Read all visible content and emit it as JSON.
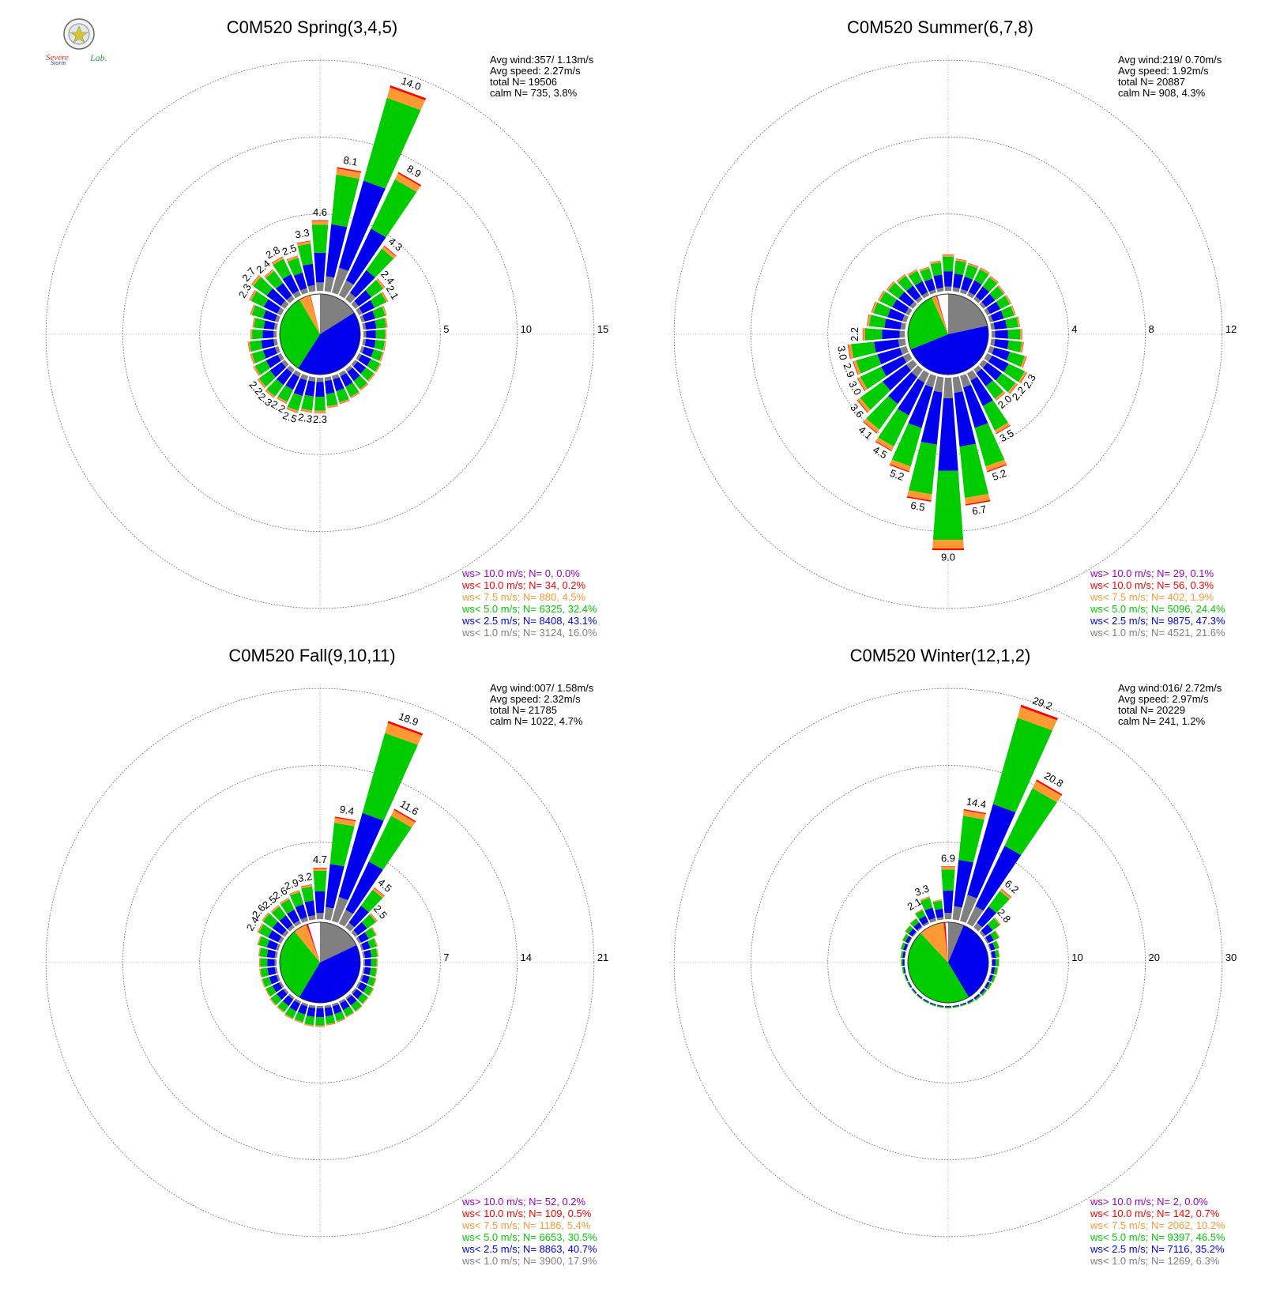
{
  "logo": {
    "text_1": "Severe",
    "text_2": "Storm",
    "text_3": "Lab."
  },
  "colors": {
    "calm": "#808080",
    "lt1": "#808080",
    "lt2_5": "#0000ee",
    "lt5": "#00cc00",
    "lt7_5": "#ff9933",
    "lt10": "#ff0000",
    "gt10": "#9900cc"
  },
  "chart_data": [
    {
      "type": "wind-rose",
      "title": "C0M520 Spring(3,4,5)",
      "rings": [
        5,
        10,
        15
      ],
      "stats": [
        "Avg wind:357/ 1.13m/s",
        "Avg speed: 2.27m/s",
        "total N=      19506",
        "calm N=   735,   3.8%"
      ],
      "legend": [
        {
          "key": "gt10",
          "text": "ws> 10.0 m/s; N=     0,  0.0%"
        },
        {
          "key": "lt10",
          "text": "ws< 10.0 m/s; N=    34,  0.2%"
        },
        {
          "key": "lt7_5",
          "text": "ws<  7.5 m/s; N=   880,  4.5%"
        },
        {
          "key": "lt5",
          "text": "ws<  5.0 m/s; N=  6325, 32.4%"
        },
        {
          "key": "lt2_5",
          "text": "ws<  2.5 m/s; N=  8408, 43.1%"
        },
        {
          "key": "lt1",
          "text": "ws<  1.0 m/s; N=  3124, 16.0%"
        }
      ],
      "pie_calm_percent": [
        16.0,
        43.1,
        32.4,
        4.5,
        0.2,
        0.0
      ],
      "sectors": [
        {
          "dir": 0,
          "total": 4.6,
          "label": "4.6"
        },
        {
          "dir": 10,
          "total": 8.1,
          "label": "8.1"
        },
        {
          "dir": 20,
          "total": 14.0,
          "label": "14.0"
        },
        {
          "dir": 30,
          "total": 8.9,
          "label": "8.9"
        },
        {
          "dir": 40,
          "total": 4.3,
          "label": "4.3"
        },
        {
          "dir": 50,
          "total": 2.4,
          "label": "2.4"
        },
        {
          "dir": 60,
          "total": 2.1,
          "label": "2.1"
        },
        {
          "dir": 70,
          "total": 1.7,
          "label": ""
        },
        {
          "dir": 80,
          "total": 1.6,
          "label": ""
        },
        {
          "dir": 90,
          "total": 1.5,
          "label": ""
        },
        {
          "dir": 100,
          "total": 1.5,
          "label": ""
        },
        {
          "dir": 110,
          "total": 1.5,
          "label": ""
        },
        {
          "dir": 120,
          "total": 1.6,
          "label": ""
        },
        {
          "dir": 130,
          "total": 1.6,
          "label": ""
        },
        {
          "dir": 140,
          "total": 1.7,
          "label": ""
        },
        {
          "dir": 150,
          "total": 1.8,
          "label": ""
        },
        {
          "dir": 160,
          "total": 1.9,
          "label": ""
        },
        {
          "dir": 170,
          "total": 2.0,
          "label": ""
        },
        {
          "dir": 180,
          "total": 2.3,
          "label": "2.3"
        },
        {
          "dir": 190,
          "total": 2.3,
          "label": "2.3"
        },
        {
          "dir": 200,
          "total": 2.5,
          "label": "2.5"
        },
        {
          "dir": 210,
          "total": 2.2,
          "label": "2.2"
        },
        {
          "dir": 220,
          "total": 2.3,
          "label": "2.3"
        },
        {
          "dir": 230,
          "total": 2.2,
          "label": "2.2"
        },
        {
          "dir": 240,
          "total": 2.0,
          "label": ""
        },
        {
          "dir": 250,
          "total": 1.9,
          "label": ""
        },
        {
          "dir": 260,
          "total": 1.9,
          "label": ""
        },
        {
          "dir": 270,
          "total": 1.7,
          "label": ""
        },
        {
          "dir": 280,
          "total": 1.6,
          "label": ""
        },
        {
          "dir": 290,
          "total": 1.9,
          "label": ""
        },
        {
          "dir": 300,
          "total": 2.3,
          "label": "2.3"
        },
        {
          "dir": 310,
          "total": 2.7,
          "label": "2.7"
        },
        {
          "dir": 320,
          "total": 2.4,
          "label": "2.4"
        },
        {
          "dir": 330,
          "total": 2.8,
          "label": "2.8"
        },
        {
          "dir": 340,
          "total": 2.5,
          "label": "2.5"
        },
        {
          "dir": 350,
          "total": 3.3,
          "label": "3.3"
        }
      ]
    },
    {
      "type": "wind-rose",
      "title": "C0M520 Summer(6,7,8)",
      "rings": [
        4,
        8,
        12
      ],
      "stats": [
        "Avg wind:219/ 0.70m/s",
        "Avg speed: 1.92m/s",
        "total N=      20887",
        "calm N=   908,   4.3%"
      ],
      "legend": [
        {
          "key": "gt10",
          "text": "ws> 10.0 m/s; N=    29,  0.1%"
        },
        {
          "key": "lt10",
          "text": "ws< 10.0 m/s; N=    56,  0.3%"
        },
        {
          "key": "lt7_5",
          "text": "ws<  7.5 m/s; N=   402,  1.9%"
        },
        {
          "key": "lt5",
          "text": "ws<  5.0 m/s; N=  5096, 24.4%"
        },
        {
          "key": "lt2_5",
          "text": "ws<  2.5 m/s; N=  9875, 47.3%"
        },
        {
          "key": "lt1",
          "text": "ws<  1.0 m/s; N=  4521, 21.6%"
        }
      ],
      "pie_calm_percent": [
        21.6,
        47.3,
        24.4,
        1.9,
        0.3,
        0.1
      ],
      "sectors": [
        {
          "dir": 0,
          "total": 1.9,
          "label": ""
        },
        {
          "dir": 10,
          "total": 1.7,
          "label": ""
        },
        {
          "dir": 20,
          "total": 1.6,
          "label": ""
        },
        {
          "dir": 30,
          "total": 1.6,
          "label": ""
        },
        {
          "dir": 40,
          "total": 1.5,
          "label": ""
        },
        {
          "dir": 50,
          "total": 1.4,
          "label": ""
        },
        {
          "dir": 60,
          "total": 1.4,
          "label": ""
        },
        {
          "dir": 70,
          "total": 1.4,
          "label": ""
        },
        {
          "dir": 80,
          "total": 1.5,
          "label": ""
        },
        {
          "dir": 90,
          "total": 1.6,
          "label": ""
        },
        {
          "dir": 100,
          "total": 1.7,
          "label": ""
        },
        {
          "dir": 110,
          "total": 2.0,
          "label": ""
        },
        {
          "dir": 120,
          "total": 2.3,
          "label": "2.3"
        },
        {
          "dir": 130,
          "total": 2.2,
          "label": "2.2"
        },
        {
          "dir": 140,
          "total": 2.0,
          "label": "2.0"
        },
        {
          "dir": 150,
          "total": 3.5,
          "label": "3.5"
        },
        {
          "dir": 160,
          "total": 5.2,
          "label": "5.2"
        },
        {
          "dir": 170,
          "total": 6.7,
          "label": "6.7"
        },
        {
          "dir": 180,
          "total": 9.0,
          "label": "9.0"
        },
        {
          "dir": 190,
          "total": 6.5,
          "label": "6.5"
        },
        {
          "dir": 200,
          "total": 5.2,
          "label": "5.2"
        },
        {
          "dir": 210,
          "total": 4.5,
          "label": "4.5"
        },
        {
          "dir": 220,
          "total": 4.1,
          "label": "4.1"
        },
        {
          "dir": 230,
          "total": 3.6,
          "label": "3.6"
        },
        {
          "dir": 240,
          "total": 3.0,
          "label": "3.0"
        },
        {
          "dir": 250,
          "total": 2.9,
          "label": "2.9"
        },
        {
          "dir": 260,
          "total": 3.0,
          "label": "3.0"
        },
        {
          "dir": 270,
          "total": 2.2,
          "label": "2.2"
        },
        {
          "dir": 280,
          "total": 2.0,
          "label": ""
        },
        {
          "dir": 290,
          "total": 1.9,
          "label": ""
        },
        {
          "dir": 300,
          "total": 1.8,
          "label": ""
        },
        {
          "dir": 310,
          "total": 1.7,
          "label": ""
        },
        {
          "dir": 320,
          "total": 1.6,
          "label": ""
        },
        {
          "dir": 330,
          "total": 1.5,
          "label": ""
        },
        {
          "dir": 340,
          "total": 1.4,
          "label": ""
        },
        {
          "dir": 350,
          "total": 1.6,
          "label": ""
        }
      ]
    },
    {
      "type": "wind-rose",
      "title": "C0M520 Fall(9,10,11)",
      "rings": [
        7,
        14,
        21
      ],
      "stats": [
        "Avg wind:007/ 1.58m/s",
        "Avg speed: 2.32m/s",
        "total N=      21785",
        "calm N=  1022,   4.7%"
      ],
      "legend": [
        {
          "key": "gt10",
          "text": "ws> 10.0 m/s; N=    52,  0.2%"
        },
        {
          "key": "lt10",
          "text": "ws< 10.0 m/s; N=   109,  0.5%"
        },
        {
          "key": "lt7_5",
          "text": "ws<  7.5 m/s; N=  1186,  5.4%"
        },
        {
          "key": "lt5",
          "text": "ws<  5.0 m/s; N=  6653, 30.5%"
        },
        {
          "key": "lt2_5",
          "text": "ws<  2.5 m/s; N=  8863, 40.7%"
        },
        {
          "key": "lt1",
          "text": "ws<  1.0 m/s; N=  3900, 17.9%"
        }
      ],
      "pie_calm_percent": [
        17.9,
        40.7,
        30.5,
        5.4,
        0.5,
        0.2
      ],
      "sectors": [
        {
          "dir": 0,
          "total": 4.7,
          "label": "4.7"
        },
        {
          "dir": 10,
          "total": 9.4,
          "label": "9.4"
        },
        {
          "dir": 20,
          "total": 18.9,
          "label": "18.9"
        },
        {
          "dir": 30,
          "total": 11.6,
          "label": "11.6"
        },
        {
          "dir": 40,
          "total": 4.5,
          "label": "4.5"
        },
        {
          "dir": 50,
          "total": 2.5,
          "label": "2.5"
        },
        {
          "dir": 60,
          "total": 1.8,
          "label": ""
        },
        {
          "dir": 70,
          "total": 1.5,
          "label": ""
        },
        {
          "dir": 80,
          "total": 1.4,
          "label": ""
        },
        {
          "dir": 90,
          "total": 1.3,
          "label": ""
        },
        {
          "dir": 100,
          "total": 1.3,
          "label": ""
        },
        {
          "dir": 110,
          "total": 1.4,
          "label": ""
        },
        {
          "dir": 120,
          "total": 1.5,
          "label": ""
        },
        {
          "dir": 130,
          "total": 1.5,
          "label": ""
        },
        {
          "dir": 140,
          "total": 1.6,
          "label": ""
        },
        {
          "dir": 150,
          "total": 1.6,
          "label": ""
        },
        {
          "dir": 160,
          "total": 1.7,
          "label": ""
        },
        {
          "dir": 170,
          "total": 1.8,
          "label": ""
        },
        {
          "dir": 180,
          "total": 1.9,
          "label": ""
        },
        {
          "dir": 190,
          "total": 1.9,
          "label": ""
        },
        {
          "dir": 200,
          "total": 1.8,
          "label": ""
        },
        {
          "dir": 210,
          "total": 1.8,
          "label": ""
        },
        {
          "dir": 220,
          "total": 1.7,
          "label": ""
        },
        {
          "dir": 230,
          "total": 1.7,
          "label": ""
        },
        {
          "dir": 240,
          "total": 1.6,
          "label": ""
        },
        {
          "dir": 250,
          "total": 1.6,
          "label": ""
        },
        {
          "dir": 260,
          "total": 1.6,
          "label": ""
        },
        {
          "dir": 270,
          "total": 1.6,
          "label": ""
        },
        {
          "dir": 280,
          "total": 1.7,
          "label": ""
        },
        {
          "dir": 290,
          "total": 2.0,
          "label": ""
        },
        {
          "dir": 300,
          "total": 2.4,
          "label": "2.4"
        },
        {
          "dir": 310,
          "total": 2.6,
          "label": "2.6"
        },
        {
          "dir": 320,
          "total": 2.5,
          "label": "2.5"
        },
        {
          "dir": 330,
          "total": 2.6,
          "label": "2.6"
        },
        {
          "dir": 340,
          "total": 2.9,
          "label": "2.9"
        },
        {
          "dir": 350,
          "total": 3.2,
          "label": "3.2"
        }
      ]
    },
    {
      "type": "wind-rose",
      "title": "C0M520 Winter(12,1,2)",
      "rings": [
        10,
        20,
        30
      ],
      "stats": [
        "Avg wind:016/ 2.72m/s",
        "Avg speed: 2.97m/s",
        "total N=      20229",
        "calm N=   241,   1.2%"
      ],
      "legend": [
        {
          "key": "gt10",
          "text": "ws> 10.0 m/s; N=     2,  0.0%"
        },
        {
          "key": "lt10",
          "text": "ws< 10.0 m/s; N=   142,  0.7%"
        },
        {
          "key": "lt7_5",
          "text": "ws<  7.5 m/s; N=  2062, 10.2%"
        },
        {
          "key": "lt5",
          "text": "ws<  5.0 m/s; N=  9397, 46.5%"
        },
        {
          "key": "lt2_5",
          "text": "ws<  2.5 m/s; N=  7116, 35.2%"
        },
        {
          "key": "lt1",
          "text": "ws<  1.0 m/s; N=  1269,  6.3%"
        }
      ],
      "pie_calm_percent": [
        6.3,
        35.2,
        46.5,
        10.2,
        0.7,
        0.0
      ],
      "sectors": [
        {
          "dir": 0,
          "total": 6.9,
          "label": "6.9"
        },
        {
          "dir": 10,
          "total": 14.4,
          "label": "14.4"
        },
        {
          "dir": 20,
          "total": 29.2,
          "label": "29.2"
        },
        {
          "dir": 30,
          "total": 20.8,
          "label": "20.8"
        },
        {
          "dir": 40,
          "total": 6.2,
          "label": "6.2"
        },
        {
          "dir": 50,
          "total": 2.8,
          "label": "2.8"
        },
        {
          "dir": 60,
          "total": 1.8,
          "label": ""
        },
        {
          "dir": 70,
          "total": 1.3,
          "label": ""
        },
        {
          "dir": 80,
          "total": 1.1,
          "label": ""
        },
        {
          "dir": 90,
          "total": 1.0,
          "label": ""
        },
        {
          "dir": 100,
          "total": 0.9,
          "label": ""
        },
        {
          "dir": 110,
          "total": 0.8,
          "label": ""
        },
        {
          "dir": 120,
          "total": 0.7,
          "label": ""
        },
        {
          "dir": 130,
          "total": 0.6,
          "label": ""
        },
        {
          "dir": 140,
          "total": 0.5,
          "label": ""
        },
        {
          "dir": 150,
          "total": 0.4,
          "label": ""
        },
        {
          "dir": 160,
          "total": 0.3,
          "label": ""
        },
        {
          "dir": 170,
          "total": 0.3,
          "label": ""
        },
        {
          "dir": 180,
          "total": 0.3,
          "label": ""
        },
        {
          "dir": 190,
          "total": 0.3,
          "label": ""
        },
        {
          "dir": 200,
          "total": 0.3,
          "label": ""
        },
        {
          "dir": 210,
          "total": 0.3,
          "label": ""
        },
        {
          "dir": 220,
          "total": 0.3,
          "label": ""
        },
        {
          "dir": 230,
          "total": 0.3,
          "label": ""
        },
        {
          "dir": 240,
          "total": 0.3,
          "label": ""
        },
        {
          "dir": 250,
          "total": 0.3,
          "label": ""
        },
        {
          "dir": 260,
          "total": 0.4,
          "label": ""
        },
        {
          "dir": 270,
          "total": 0.5,
          "label": ""
        },
        {
          "dir": 280,
          "total": 0.6,
          "label": ""
        },
        {
          "dir": 290,
          "total": 0.8,
          "label": ""
        },
        {
          "dir": 300,
          "total": 1.0,
          "label": ""
        },
        {
          "dir": 310,
          "total": 1.3,
          "label": ""
        },
        {
          "dir": 320,
          "total": 1.5,
          "label": ""
        },
        {
          "dir": 330,
          "total": 2.1,
          "label": "2.1"
        },
        {
          "dir": 340,
          "total": 3.3,
          "label": "3.3"
        },
        {
          "dir": 350,
          "total": 2.6,
          "label": ""
        }
      ]
    }
  ]
}
